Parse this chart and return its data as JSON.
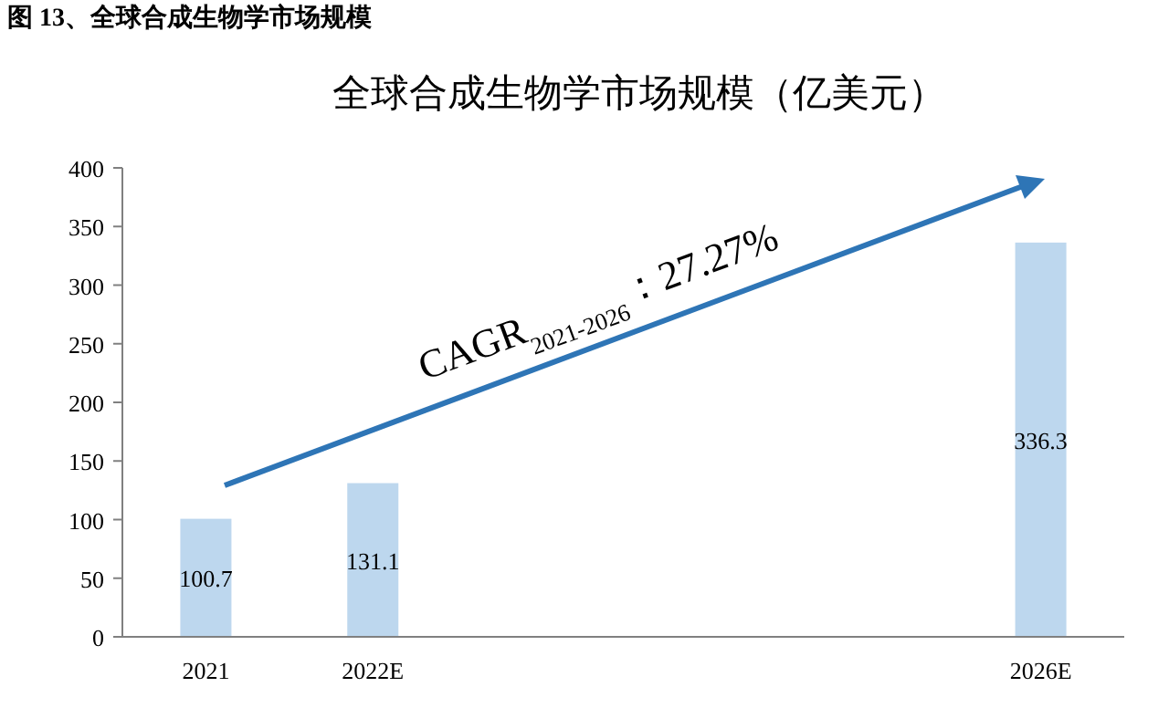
{
  "chart_data": {
    "type": "bar",
    "title": "全球合成生物学市场规模（亿美元）",
    "categories": [
      "2021",
      "2022E",
      null,
      null,
      null,
      "2026E"
    ],
    "values": [
      100.7,
      131.1,
      null,
      null,
      null,
      336.3
    ],
    "color": "#bdd7ee",
    "ylim": [
      0,
      400
    ],
    "yticks": [
      0,
      50,
      100,
      150,
      200,
      250,
      300,
      350,
      400
    ],
    "data_labels": true,
    "annotations": [
      "图 13、全球合成生物学市场规模",
      "CAGR$_{2021-2026}$：27.27%"
    ]
  }
}
